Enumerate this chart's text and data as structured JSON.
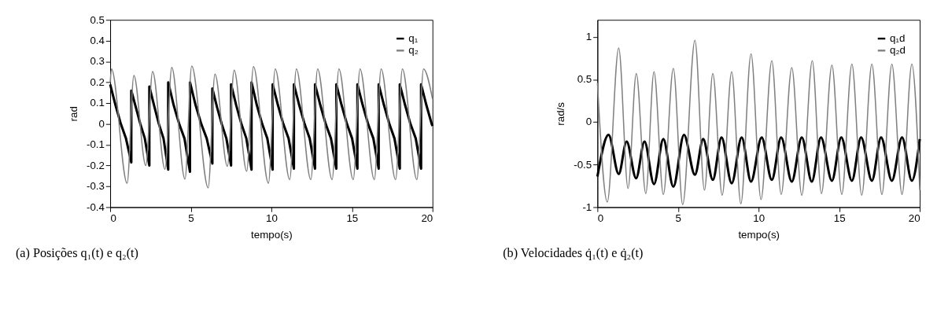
{
  "chart_data": [
    {
      "type": "line",
      "title": "(a) Posições q₁(t) e q₂(t)",
      "xlabel": "tempo(s)",
      "ylabel": "rad",
      "xlim": [
        0,
        20
      ],
      "xticks": [
        0,
        5,
        10,
        15,
        20
      ],
      "ylim": [
        -0.4,
        0.5
      ],
      "yticks": [
        -0.4,
        -0.3,
        -0.2,
        -0.1,
        0,
        0.1,
        0.2,
        0.3,
        0.4,
        0.5
      ],
      "grid": false,
      "legend": "top right",
      "series": [
        {
          "name": "q₁",
          "color": "#000000",
          "x": [
            0,
            0.33,
            0.66,
            0.98,
            1.31,
            1.31,
            1.59,
            1.87,
            2.15,
            2.43,
            2.43,
            2.72,
            3.02,
            3.31,
            3.6,
            3.6,
            3.94,
            4.28,
            4.61,
            4.95,
            4.95,
            5.3,
            5.65,
            5.99,
            6.34,
            6.34,
            6.63,
            6.92,
            7.21,
            7.5,
            7.5,
            7.82,
            8.14,
            8.45,
            8.77,
            8.77,
            9.1,
            9.43,
            9.75,
            10.08,
            10.08,
            10.41,
            10.74,
            11.07,
            11.4,
            11.4,
            11.73,
            12.06,
            12.38,
            12.71,
            12.71,
            13.04,
            13.37,
            13.7,
            14.03,
            14.03,
            14.36,
            14.69,
            15.01,
            15.34,
            15.34,
            15.67,
            16.0,
            16.33,
            16.66,
            16.66,
            16.99,
            17.32,
            17.64,
            17.97,
            17.97,
            18.3,
            18.63,
            18.96,
            19.29,
            19.29,
            19.62,
            19.95,
            20
          ],
          "values": [
            0.19,
            0.09,
            0,
            -0.07,
            -0.185,
            0.16,
            0.08,
            0,
            -0.07,
            -0.2,
            0.18,
            0.09,
            0,
            -0.07,
            -0.22,
            0.2,
            0.09,
            0,
            -0.07,
            -0.23,
            0.2,
            0.09,
            0,
            -0.07,
            -0.19,
            0.17,
            0.08,
            0,
            -0.07,
            -0.2,
            0.19,
            0.09,
            0,
            -0.07,
            -0.22,
            0.2,
            0.09,
            0,
            -0.07,
            -0.22,
            0.19,
            0.09,
            0,
            -0.07,
            -0.215,
            0.19,
            0.09,
            0,
            -0.07,
            -0.215,
            0.19,
            0.09,
            0,
            -0.07,
            -0.215,
            0.19,
            0.09,
            0,
            -0.07,
            -0.215,
            0.19,
            0.09,
            0,
            -0.07,
            -0.215,
            0.19,
            0.09,
            0,
            -0.07,
            -0.215,
            0.19,
            0.09,
            0,
            -0.07,
            -0.215,
            0.19,
            0.09,
            0,
            -0.01
          ]
        },
        {
          "name": "q₂",
          "color": "#808080",
          "x": [
            0,
            0.08,
            1.05,
            1.47,
            2.21,
            2.63,
            3.4,
            3.82,
            4.64,
            5.06,
            6.08,
            6.5,
            7.27,
            7.69,
            8.47,
            8.89,
            9.82,
            10.24,
            11.14,
            11.55,
            12.45,
            12.87,
            13.77,
            14.19,
            15.08,
            15.5,
            16.39,
            16.81,
            17.71,
            18.13,
            19.03,
            19.44,
            20
          ],
          "values": [
            0.2,
            0.264,
            -0.285,
            0.233,
            -0.2,
            0.252,
            -0.218,
            0.271,
            -0.265,
            0.278,
            -0.307,
            0.239,
            -0.204,
            0.258,
            -0.227,
            0.275,
            -0.285,
            0.264,
            -0.268,
            0.264,
            -0.268,
            0.264,
            -0.268,
            0.264,
            -0.268,
            0.264,
            -0.268,
            0.264,
            -0.268,
            0.264,
            -0.268,
            0.264,
            0.12
          ]
        }
      ]
    },
    {
      "type": "line",
      "title": "(b) Velocidades q̇₁(t) e q̇₂(t)",
      "xlabel": "tempo(s)",
      "ylabel": "rad/s",
      "xlim": [
        0,
        20
      ],
      "xticks": [
        0,
        5,
        10,
        15,
        20
      ],
      "ylim": [
        -1,
        1.2
      ],
      "yticks": [
        -1,
        -0.5,
        0,
        0.5,
        1
      ],
      "grid": false,
      "legend": "top right",
      "series": [
        {
          "name": "q₁d",
          "color": "#000000",
          "x": [
            0,
            0.69,
            1.32,
            1.81,
            2.4,
            2.92,
            3.51,
            4.09,
            4.71,
            5.37,
            6.05,
            6.56,
            7.16,
            7.7,
            8.33,
            8.95,
            9.53,
            10.19,
            10.82,
            11.4,
            12.06,
            12.68,
            13.3,
            13.87,
            14.55,
            15.13,
            15.79,
            16.36,
            17.03,
            17.6,
            18.27,
            18.9,
            19.51,
            20
          ],
          "values": [
            -0.64,
            -0.15,
            -0.61,
            -0.23,
            -0.66,
            -0.23,
            -0.73,
            -0.2,
            -0.76,
            -0.15,
            -0.62,
            -0.2,
            -0.68,
            -0.18,
            -0.72,
            -0.18,
            -0.7,
            -0.18,
            -0.68,
            -0.18,
            -0.7,
            -0.18,
            -0.7,
            -0.18,
            -0.69,
            -0.18,
            -0.69,
            -0.18,
            -0.69,
            -0.18,
            -0.69,
            -0.18,
            -0.69,
            -0.2
          ]
        },
        {
          "name": "q₂d",
          "color": "#808080",
          "x": [
            0,
            0.61,
            1.32,
            1.9,
            2.41,
            3.0,
            3.51,
            4.09,
            4.71,
            5.29,
            6.05,
            6.64,
            7.16,
            7.74,
            8.33,
            8.9,
            9.53,
            10.15,
            10.82,
            11.4,
            12.06,
            12.68,
            13.33,
            13.9,
            14.55,
            15.16,
            15.79,
            16.4,
            17.03,
            17.65,
            18.27,
            18.9,
            19.51,
            20
          ],
          "values": [
            0.46,
            -0.94,
            0.87,
            -0.78,
            0.57,
            -0.84,
            0.59,
            -0.85,
            0.63,
            -0.97,
            0.96,
            -0.8,
            0.57,
            -0.86,
            0.59,
            -0.96,
            0.8,
            -0.91,
            0.72,
            -0.85,
            0.64,
            -0.86,
            0.72,
            -0.84,
            0.67,
            -0.85,
            0.68,
            -0.86,
            0.68,
            -0.85,
            0.68,
            -0.85,
            0.68,
            -0.8
          ]
        }
      ]
    }
  ]
}
